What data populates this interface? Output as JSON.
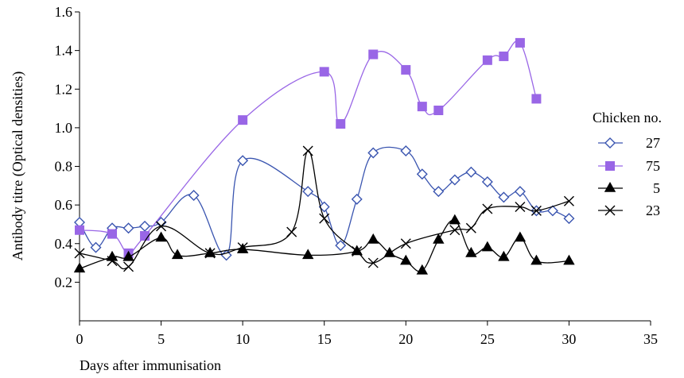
{
  "chart_data": {
    "type": "line",
    "title": "",
    "xlabel": "Days after immunisation",
    "ylabel": "Antibody titre (Optical densities)",
    "xlim": [
      0,
      35
    ],
    "ylim": [
      0,
      1.6
    ],
    "xticks": [
      0,
      5,
      10,
      15,
      20,
      25,
      30,
      35
    ],
    "yticks": [
      0.2,
      0.4,
      0.6,
      0.8,
      1.0,
      1.2,
      1.4,
      1.6
    ],
    "ytick_labels": [
      "0.2",
      "0.4",
      "0.6",
      "0.8",
      "1.0",
      "1.2",
      "1.4",
      "1.6"
    ],
    "grid": false,
    "legend_position": "right",
    "legend_title": "Chicken no.",
    "series": [
      {
        "name": "27",
        "marker": "diamond-open",
        "color": "#3a55b0",
        "points": [
          [
            0,
            0.51
          ],
          [
            1,
            0.38
          ],
          [
            2,
            0.48
          ],
          [
            3,
            0.48
          ],
          [
            4,
            0.49
          ],
          [
            5,
            0.51
          ],
          [
            7,
            0.65
          ],
          [
            9,
            0.34
          ],
          [
            10,
            0.83
          ],
          [
            14,
            0.67
          ],
          [
            15,
            0.59
          ],
          [
            16,
            0.39
          ],
          [
            17,
            0.63
          ],
          [
            18,
            0.87
          ],
          [
            20,
            0.88
          ],
          [
            21,
            0.76
          ],
          [
            22,
            0.67
          ],
          [
            23,
            0.73
          ],
          [
            24,
            0.77
          ],
          [
            25,
            0.72
          ],
          [
            26,
            0.64
          ],
          [
            27,
            0.67
          ],
          [
            28,
            0.57
          ],
          [
            29,
            0.57
          ],
          [
            30,
            0.53
          ]
        ]
      },
      {
        "name": "75",
        "marker": "square-filled",
        "color": "#9966e6",
        "points": [
          [
            0,
            0.47
          ],
          [
            2,
            0.45
          ],
          [
            3,
            0.35
          ],
          [
            4,
            0.44
          ],
          [
            10,
            1.04
          ],
          [
            15,
            1.29
          ],
          [
            16,
            1.02
          ],
          [
            18,
            1.38
          ],
          [
            20,
            1.3
          ],
          [
            21,
            1.11
          ],
          [
            22,
            1.09
          ],
          [
            25,
            1.35
          ],
          [
            26,
            1.37
          ],
          [
            27,
            1.44
          ],
          [
            28,
            1.15
          ]
        ]
      },
      {
        "name": "5",
        "marker": "triangle-filled",
        "color": "#000000",
        "points": [
          [
            0,
            0.27
          ],
          [
            2,
            0.33
          ],
          [
            3,
            0.33
          ],
          [
            5,
            0.43
          ],
          [
            6,
            0.34
          ],
          [
            8,
            0.35
          ],
          [
            10,
            0.37
          ],
          [
            14,
            0.34
          ],
          [
            17,
            0.36
          ],
          [
            18,
            0.42
          ],
          [
            19,
            0.35
          ],
          [
            20,
            0.31
          ],
          [
            21,
            0.26
          ],
          [
            22,
            0.42
          ],
          [
            23,
            0.52
          ],
          [
            24,
            0.35
          ],
          [
            25,
            0.38
          ],
          [
            26,
            0.33
          ],
          [
            27,
            0.43
          ],
          [
            28,
            0.31
          ],
          [
            30,
            0.31
          ]
        ]
      },
      {
        "name": "23",
        "marker": "x",
        "color": "#000000",
        "points": [
          [
            0,
            0.35
          ],
          [
            2,
            0.31
          ],
          [
            3,
            0.28
          ],
          [
            5,
            0.49
          ],
          [
            8,
            0.35
          ],
          [
            10,
            0.38
          ],
          [
            13,
            0.46
          ],
          [
            14,
            0.88
          ],
          [
            15,
            0.53
          ],
          [
            17,
            0.36
          ],
          [
            18,
            0.3
          ],
          [
            20,
            0.4
          ],
          [
            23,
            0.47
          ],
          [
            24,
            0.48
          ],
          [
            25,
            0.58
          ],
          [
            27,
            0.59
          ],
          [
            28,
            0.57
          ],
          [
            30,
            0.62
          ]
        ]
      }
    ]
  }
}
